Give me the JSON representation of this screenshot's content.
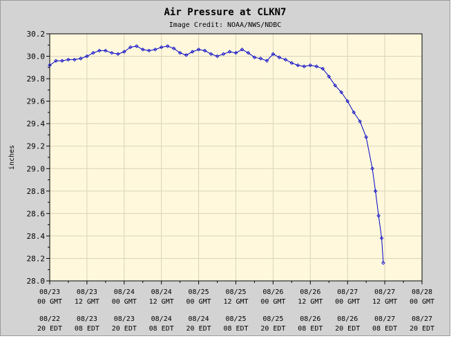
{
  "chart_data": {
    "type": "line",
    "title": "Air Pressure at CLKN7",
    "subtitle": "Image Credit: NOAA/NWS/NDBC",
    "ylabel": "inches",
    "ylim": [
      28.0,
      30.2
    ],
    "y_ticks": [
      "28.0",
      "28.2",
      "28.4",
      "28.6",
      "28.8",
      "29.0",
      "29.2",
      "29.4",
      "29.6",
      "29.8",
      "30.0",
      "30.2"
    ],
    "xlim": [
      "2011-08-23 00:00 GMT",
      "2011-08-28 00:00 GMT"
    ],
    "x_ticks_gmt": [
      {
        "d": "08/23",
        "t": "00 GMT"
      },
      {
        "d": "08/23",
        "t": "12 GMT"
      },
      {
        "d": "08/24",
        "t": "00 GMT"
      },
      {
        "d": "08/24",
        "t": "12 GMT"
      },
      {
        "d": "08/25",
        "t": "00 GMT"
      },
      {
        "d": "08/25",
        "t": "12 GMT"
      },
      {
        "d": "08/26",
        "t": "00 GMT"
      },
      {
        "d": "08/26",
        "t": "12 GMT"
      },
      {
        "d": "08/27",
        "t": "00 GMT"
      },
      {
        "d": "08/27",
        "t": "12 GMT"
      },
      {
        "d": "08/28",
        "t": "00 GMT"
      }
    ],
    "x_ticks_edt": [
      {
        "d": "08/22",
        "t": "20 EDT"
      },
      {
        "d": "08/23",
        "t": "08 EDT"
      },
      {
        "d": "08/23",
        "t": "20 EDT"
      },
      {
        "d": "08/24",
        "t": "08 EDT"
      },
      {
        "d": "08/24",
        "t": "20 EDT"
      },
      {
        "d": "08/25",
        "t": "08 EDT"
      },
      {
        "d": "08/25",
        "t": "20 EDT"
      },
      {
        "d": "08/26",
        "t": "08 EDT"
      },
      {
        "d": "08/26",
        "t": "20 EDT"
      },
      {
        "d": "08/27",
        "t": "08 EDT"
      },
      {
        "d": "08/27",
        "t": "20 EDT"
      }
    ],
    "grid": true,
    "series": [
      {
        "x": [
          "08/23 00:00",
          "08/23 02:00",
          "08/23 04:00",
          "08/23 06:00",
          "08/23 08:00",
          "08/23 10:00",
          "08/23 12:00",
          "08/23 14:00",
          "08/23 16:00",
          "08/23 18:00",
          "08/23 20:00",
          "08/23 22:00",
          "08/24 00:00",
          "08/24 02:00",
          "08/24 04:00",
          "08/24 06:00",
          "08/24 08:00",
          "08/24 10:00",
          "08/24 12:00",
          "08/24 14:00",
          "08/24 16:00",
          "08/24 18:00",
          "08/24 20:00",
          "08/24 22:00",
          "08/25 00:00",
          "08/25 02:00",
          "08/25 04:00",
          "08/25 06:00",
          "08/25 08:00",
          "08/25 10:00",
          "08/25 12:00",
          "08/25 14:00",
          "08/25 16:00",
          "08/25 18:00",
          "08/25 20:00",
          "08/25 22:00",
          "08/26 00:00",
          "08/26 02:00",
          "08/26 04:00",
          "08/26 06:00",
          "08/26 08:00",
          "08/26 10:00",
          "08/26 12:00",
          "08/26 14:00",
          "08/26 16:00",
          "08/26 18:00",
          "08/26 20:00",
          "08/26 22:00",
          "08/27 00:00",
          "08/27 02:00",
          "08/27 04:00",
          "08/27 06:00",
          "08/27 08:00",
          "08/27 09:00",
          "08/27 10:00",
          "08/27 11:00",
          "08/27 11:30"
        ],
        "values": [
          29.92,
          29.96,
          29.96,
          29.97,
          29.97,
          29.98,
          30.0,
          30.03,
          30.05,
          30.05,
          30.03,
          30.02,
          30.04,
          30.08,
          30.09,
          30.06,
          30.05,
          30.06,
          30.08,
          30.09,
          30.07,
          30.03,
          30.01,
          30.04,
          30.06,
          30.05,
          30.02,
          30.0,
          30.02,
          30.04,
          30.03,
          30.06,
          30.03,
          29.99,
          29.98,
          29.96,
          30.02,
          29.99,
          29.97,
          29.94,
          29.92,
          29.91,
          29.92,
          29.91,
          29.89,
          29.82,
          29.74,
          29.68,
          29.6,
          29.5,
          29.42,
          29.28,
          29.0,
          28.8,
          28.58,
          28.38,
          28.16
        ]
      }
    ],
    "colors": {
      "outer_background": "#d3d3d3",
      "plot_background": "#fff8dc",
      "grid": "#d8d2ba",
      "line": "#0000c8"
    }
  }
}
